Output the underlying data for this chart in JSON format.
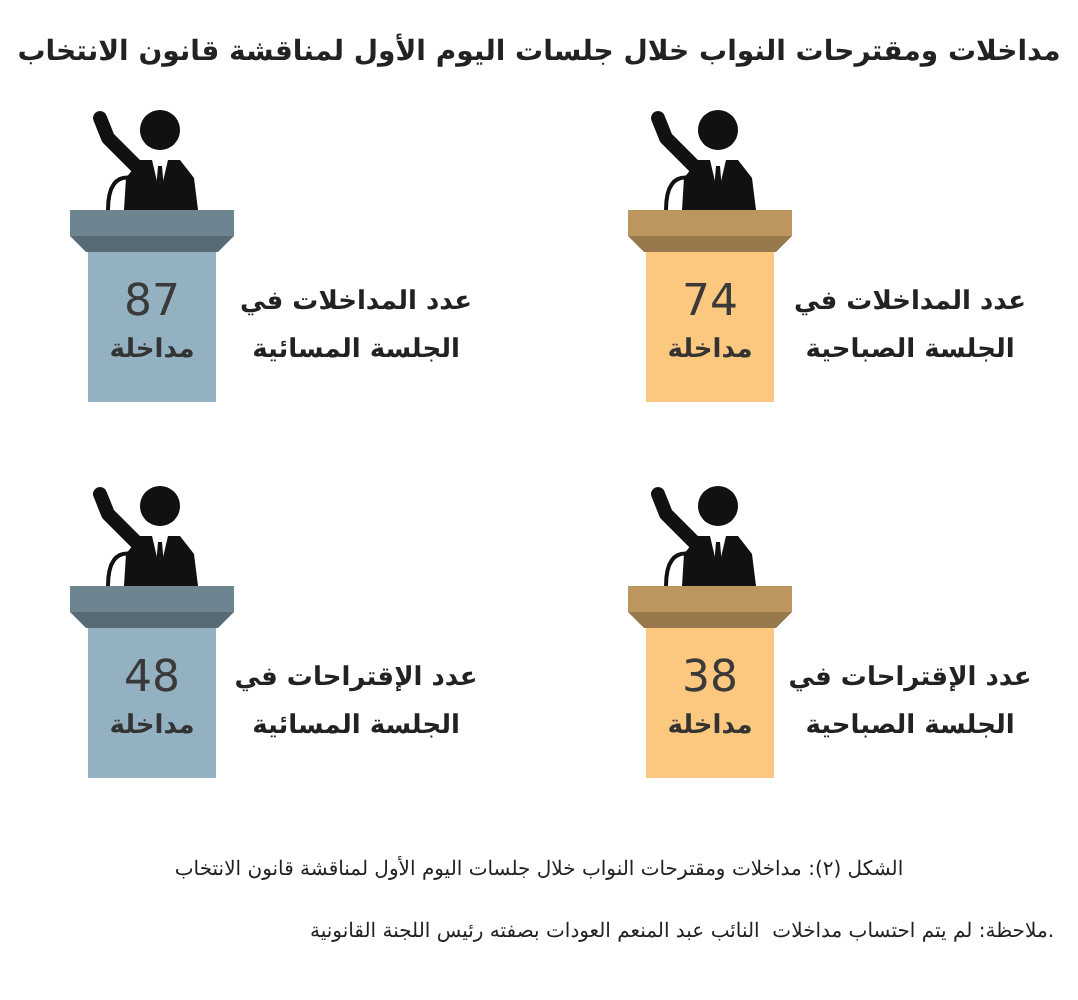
{
  "chart_data": {
    "type": "other",
    "title": "مداخلات ومقترحات النواب خلال جلسات اليوم الأول لمناقشة قانون الانتخاب",
    "categories": [
      "عدد المداخلات في\nالجلسة الصباحية",
      "عدد المداخلات في\nالجلسة المسائية",
      "عدد الإقتراحات في\nالجلسة الصباحية",
      "عدد الإقتراحات في\nالجلسة المسائية"
    ],
    "values": [
      74,
      87,
      38,
      48
    ],
    "value_labels": [
      "74 مداخلة",
      "87 مداخلة",
      "38 مداخلة",
      "48 مداخلة"
    ],
    "colors": [
      "#fcc77f",
      "#93b1c1",
      "#fcc77f",
      "#93b1c1"
    ],
    "annotations": [
      "الشكل (٢): مداخلات ومقترحات النواب خلال جلسات اليوم الأول لمناقشة قانون الانتخاب",
      "ملاحظة: لم يتم احتساب مداخلات  النائب عبد المنعم العودات بصفته رئيس اللجنة القانونية."
    ]
  }
}
